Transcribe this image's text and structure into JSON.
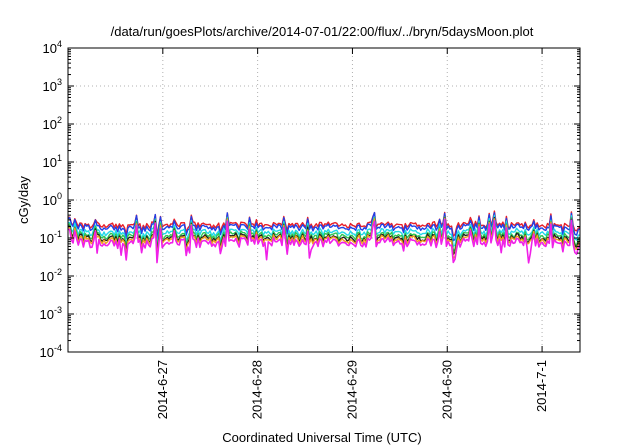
{
  "chart_data": {
    "type": "line",
    "title": "/data/run/goesPlots/archive/2014-07-01/22:00/flux/../bryn/5daysMoon.plot",
    "xlabel": "Coordinated Universal Time (UTC)",
    "ylabel": "cGy/day",
    "yscale": "log",
    "ylim_exponents": [
      -4,
      4
    ],
    "y_tick_base": "10",
    "y_tick_exponents": [
      "-4",
      "-3",
      "-2",
      "-1",
      "0",
      "1",
      "2",
      "3",
      "4"
    ],
    "xlim_days": [
      0,
      5.4
    ],
    "x_ticks": [
      {
        "label": "2014-6-27",
        "day": 1.0
      },
      {
        "label": "2014-6-28",
        "day": 2.0
      },
      {
        "label": "2014-6-29",
        "day": 3.0
      },
      {
        "label": "2014-6-30",
        "day": 4.0
      },
      {
        "label": "2014-7-1",
        "day": 5.0
      }
    ],
    "grid": true,
    "legend": "none",
    "series": [
      {
        "name": "red",
        "color": "#e8202a",
        "base": 0.22
      },
      {
        "name": "blue",
        "color": "#2040e8",
        "base": 0.19
      },
      {
        "name": "cyan",
        "color": "#20d8e8",
        "base": 0.14
      },
      {
        "name": "green",
        "color": "#30c850",
        "base": 0.115
      },
      {
        "name": "black",
        "color": "#202020",
        "base": 0.1
      },
      {
        "name": "orange",
        "color": "#f0a020",
        "base": 0.09
      },
      {
        "name": "magenta",
        "color": "#f020e8",
        "base": 0.075
      }
    ]
  }
}
